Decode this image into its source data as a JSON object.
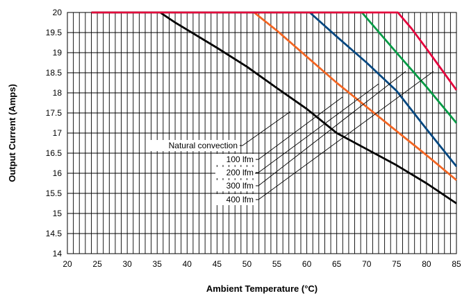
{
  "chart_data": {
    "type": "line",
    "title": "",
    "xlabel": "Ambient Temperature (°C)",
    "ylabel": "Output Current (Amps)",
    "xlim": [
      20,
      85
    ],
    "ylim": [
      14,
      20
    ],
    "x_ticks": [
      20,
      25,
      30,
      35,
      40,
      45,
      50,
      55,
      60,
      65,
      70,
      75,
      80,
      85
    ],
    "y_ticks": [
      "14",
      "14.5",
      "15",
      "15.5",
      "16",
      "16.5",
      "17",
      "17.5",
      "18",
      "18.5",
      "19",
      "19.5",
      "20"
    ],
    "grid": true,
    "series": [
      {
        "name": "Natural convection",
        "color": "#000000",
        "points": [
          [
            24,
            20
          ],
          [
            35.5,
            20
          ],
          [
            36.5,
            19.9
          ],
          [
            38,
            19.75
          ],
          [
            45,
            19.12
          ],
          [
            50,
            18.65
          ],
          [
            55,
            18.12
          ],
          [
            60,
            17.6
          ],
          [
            65,
            17
          ],
          [
            70,
            16.6
          ],
          [
            75,
            16.2
          ],
          [
            80,
            15.75
          ],
          [
            85,
            15.25
          ]
        ]
      },
      {
        "name": "100 lfm",
        "color": "#f26522",
        "points": [
          [
            24,
            20
          ],
          [
            51.2,
            20
          ],
          [
            55,
            19.55
          ],
          [
            60,
            18.9
          ],
          [
            65,
            18.25
          ],
          [
            70,
            17.65
          ],
          [
            75,
            17.05
          ],
          [
            80,
            16.45
          ],
          [
            85,
            15.83
          ]
        ]
      },
      {
        "name": "200 lfm",
        "color": "#00467f",
        "points": [
          [
            24,
            20
          ],
          [
            60.5,
            20
          ],
          [
            65,
            19.4
          ],
          [
            70,
            18.75
          ],
          [
            75,
            18.05
          ],
          [
            80,
            17.1
          ],
          [
            85,
            16.17
          ]
        ]
      },
      {
        "name": "300 lfm",
        "color": "#009a44",
        "points": [
          [
            24,
            20
          ],
          [
            69.2,
            20
          ],
          [
            75,
            19.0
          ],
          [
            80,
            18.15
          ],
          [
            85,
            17.25
          ]
        ]
      },
      {
        "name": "400 lfm",
        "color": "#e4003b",
        "points": [
          [
            24,
            20
          ],
          [
            75.2,
            20
          ],
          [
            77.5,
            19.6
          ],
          [
            80,
            19.1
          ],
          [
            85,
            18.07
          ]
        ]
      }
    ],
    "annotations": [
      {
        "label": "Natural convection",
        "series": "Natural convection"
      },
      {
        "label": "100 lfm",
        "series": "100 lfm"
      },
      {
        "label": "200 lfm",
        "series": "200 lfm"
      },
      {
        "label": "300 lfm",
        "series": "300 lfm"
      },
      {
        "label": "400 lfm",
        "series": "400 lfm"
      }
    ]
  }
}
